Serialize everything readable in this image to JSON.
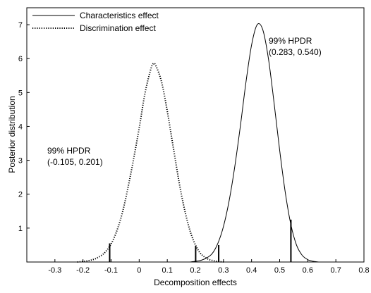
{
  "chart_data": {
    "type": "line",
    "title": "",
    "xlabel": "Decomposition effects",
    "ylabel": "Posterior distribution",
    "xlim": [
      -0.4,
      0.8
    ],
    "ylim": [
      0,
      7.5
    ],
    "xticks": [
      -0.3,
      -0.2,
      -0.1,
      0,
      0.1,
      0.2,
      0.3,
      0.4,
      0.5,
      0.6,
      0.7,
      0.8
    ],
    "xtick_labels": [
      "-0.3",
      "-0.2",
      "-0.1",
      "0",
      "0.1",
      "0.2",
      "0.3",
      "0.4",
      "0.5",
      "0.6",
      "0.7",
      "0.8"
    ],
    "yticks": [
      1,
      2,
      3,
      4,
      5,
      6,
      7
    ],
    "ytick_labels": [
      "1",
      "2",
      "3",
      "4",
      "5",
      "6",
      "7"
    ],
    "grid": false,
    "legend_position": "top-left",
    "series": [
      {
        "name": "Characteristics effect",
        "style": "solid",
        "color": "#000000",
        "x": [
          0.18,
          0.2,
          0.22,
          0.24,
          0.26,
          0.28,
          0.3,
          0.32,
          0.34,
          0.36,
          0.38,
          0.4,
          0.42,
          0.44,
          0.46,
          0.48,
          0.5,
          0.52,
          0.54,
          0.56,
          0.58,
          0.6,
          0.62,
          0.64
        ],
        "y": [
          0.0,
          0.02,
          0.05,
          0.12,
          0.25,
          0.55,
          1.05,
          1.8,
          2.8,
          4.0,
          5.3,
          6.4,
          7.0,
          6.85,
          6.0,
          4.7,
          3.3,
          2.05,
          1.1,
          0.5,
          0.2,
          0.07,
          0.02,
          0.0
        ]
      },
      {
        "name": "Discrimination effect",
        "style": "dotted",
        "color": "#000000",
        "x": [
          -0.22,
          -0.18,
          -0.15,
          -0.12,
          -0.09,
          -0.06,
          -0.03,
          0.0,
          0.02,
          0.04,
          0.05,
          0.06,
          0.08,
          0.1,
          0.12,
          0.15,
          0.18,
          0.21,
          0.24,
          0.27,
          0.3
        ],
        "y": [
          0.0,
          0.04,
          0.12,
          0.3,
          0.7,
          1.45,
          2.6,
          3.95,
          4.95,
          5.65,
          5.85,
          5.78,
          5.3,
          4.45,
          3.45,
          2.0,
          0.95,
          0.35,
          0.11,
          0.03,
          0.0
        ]
      }
    ],
    "hpdr_marks": [
      {
        "x": -0.105,
        "y": 0.55
      },
      {
        "x": 0.201,
        "y": 0.48
      },
      {
        "x": 0.283,
        "y": 0.5
      },
      {
        "x": 0.54,
        "y": 1.25
      }
    ],
    "annotations": [
      {
        "lines": [
          "99% HPDR",
          "(0.283, 0.540)"
        ]
      },
      {
        "lines": [
          "99% HPDR",
          "(-0.105, 0.201)"
        ]
      }
    ]
  }
}
